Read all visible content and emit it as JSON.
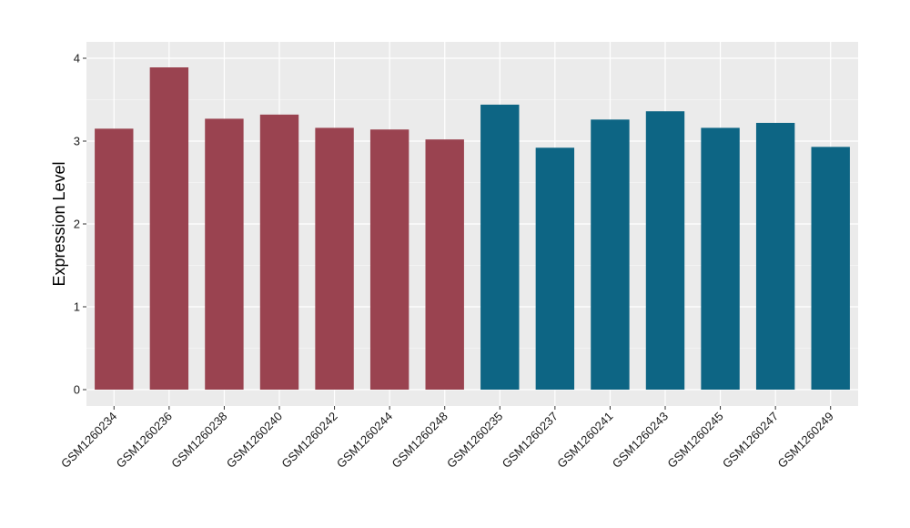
{
  "chart_data": {
    "type": "bar",
    "title": "",
    "xlabel": "",
    "ylabel": "Expression Level",
    "ylim": [
      0,
      4.1
    ],
    "yticks": [
      0,
      1,
      2,
      3,
      4
    ],
    "grid": true,
    "legend": "none",
    "colors": {
      "group1": "#9A4350",
      "group2": "#0D6584",
      "panel": "#EBEBEB",
      "grid": "#FFFFFF"
    },
    "categories": [
      "GSM1260234",
      "GSM1260236",
      "GSM1260238",
      "GSM1260240",
      "GSM1260242",
      "GSM1260244",
      "GSM1260248",
      "GSM1260235",
      "GSM1260237",
      "GSM1260241",
      "GSM1260243",
      "GSM1260245",
      "GSM1260247",
      "GSM1260249"
    ],
    "values": [
      3.15,
      3.89,
      3.27,
      3.32,
      3.16,
      3.14,
      3.02,
      3.44,
      2.92,
      3.26,
      3.36,
      3.16,
      3.22,
      2.93
    ],
    "groups": [
      1,
      1,
      1,
      1,
      1,
      1,
      1,
      2,
      2,
      2,
      2,
      2,
      2,
      2
    ]
  }
}
